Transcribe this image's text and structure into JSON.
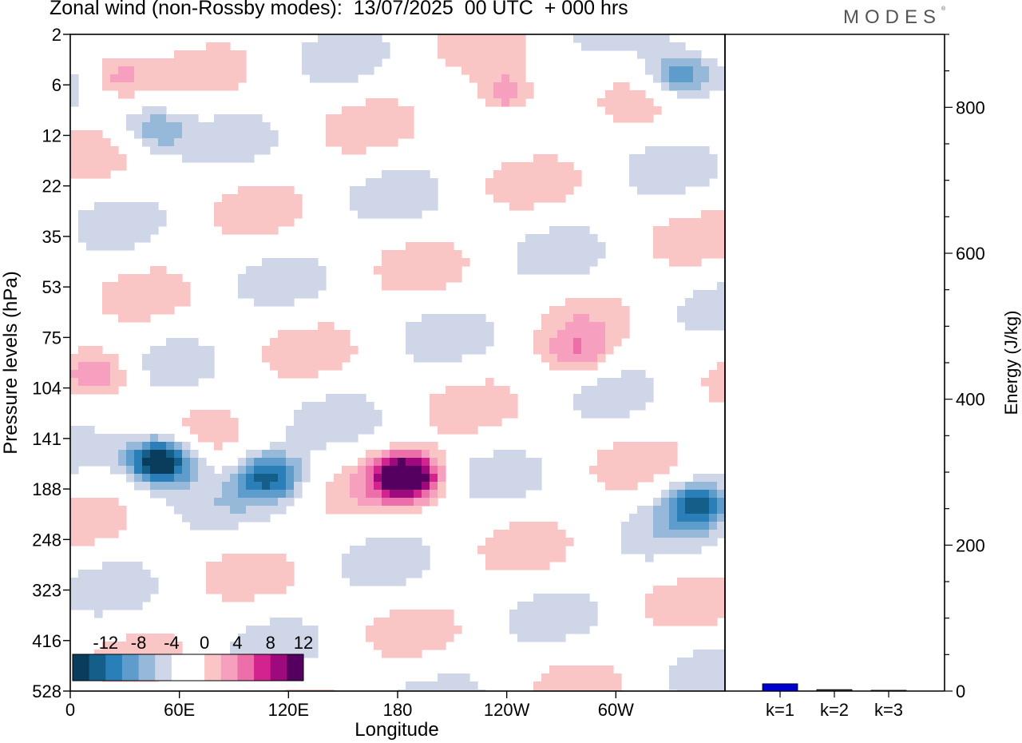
{
  "header": {
    "title": "Zonal wind (non-Rossby modes):  13/07/2025  00 UTC  + 000 hrs",
    "logo": "MODES"
  },
  "chart_data": [
    {
      "type": "heatmap",
      "title": "Zonal wind (non-Rossby modes):  13/07/2025  00 UTC  + 000 hrs",
      "xlabel": "Longitude",
      "ylabel": "Pressure levels (hPa)",
      "x_ticks": [
        "0",
        "60E",
        "120E",
        "180",
        "120W",
        "60W"
      ],
      "x_tick_degrees": [
        0,
        60,
        120,
        180,
        240,
        300
      ],
      "xlim": [
        0,
        360
      ],
      "y_ticks": [
        "2",
        "6",
        "12",
        "22",
        "35",
        "53",
        "75",
        "104",
        "141",
        "188",
        "248",
        "323",
        "416",
        "528"
      ],
      "colorbar": {
        "labels": [
          "-12",
          "-8",
          "-4",
          "0",
          "4",
          "8",
          "12"
        ],
        "colors": [
          "#0a3d5c",
          "#135f8a",
          "#2b7fb8",
          "#5e9ccc",
          "#96b9da",
          "#cfd6e8",
          "#ffffff",
          "#ffffff",
          "#f9c5c5",
          "#f69fbe",
          "#ec6fa9",
          "#d2238f",
          "#9e0a7e",
          "#550060"
        ]
      },
      "features": [
        {
          "lon": 50,
          "level": 160,
          "u": -16
        },
        {
          "lon": 110,
          "level": 175,
          "u": -10
        },
        {
          "lon": 185,
          "level": 175,
          "u": 16
        },
        {
          "lon": 345,
          "level": 205,
          "u": -10
        },
        {
          "lon": 240,
          "level": 7,
          "u": 8
        },
        {
          "lon": 335,
          "level": 5,
          "u": -9
        },
        {
          "lon": 45,
          "level": 11,
          "u": -6
        },
        {
          "lon": 25,
          "level": 5,
          "u": 6
        },
        {
          "lon": 280,
          "level": 85,
          "u": 5
        },
        {
          "lon": 20,
          "level": 95,
          "u": 5
        }
      ]
    },
    {
      "type": "bar",
      "ylabel": "Energy (J/kg)",
      "categories": [
        "k=1",
        "k=2",
        "k=3"
      ],
      "values": [
        10,
        2,
        1
      ],
      "y_ticks": [
        "0",
        "200",
        "400",
        "600",
        "800"
      ],
      "ylim": [
        0,
        900
      ],
      "colors": [
        "#0000cc",
        "#333333",
        "#333333"
      ]
    }
  ]
}
